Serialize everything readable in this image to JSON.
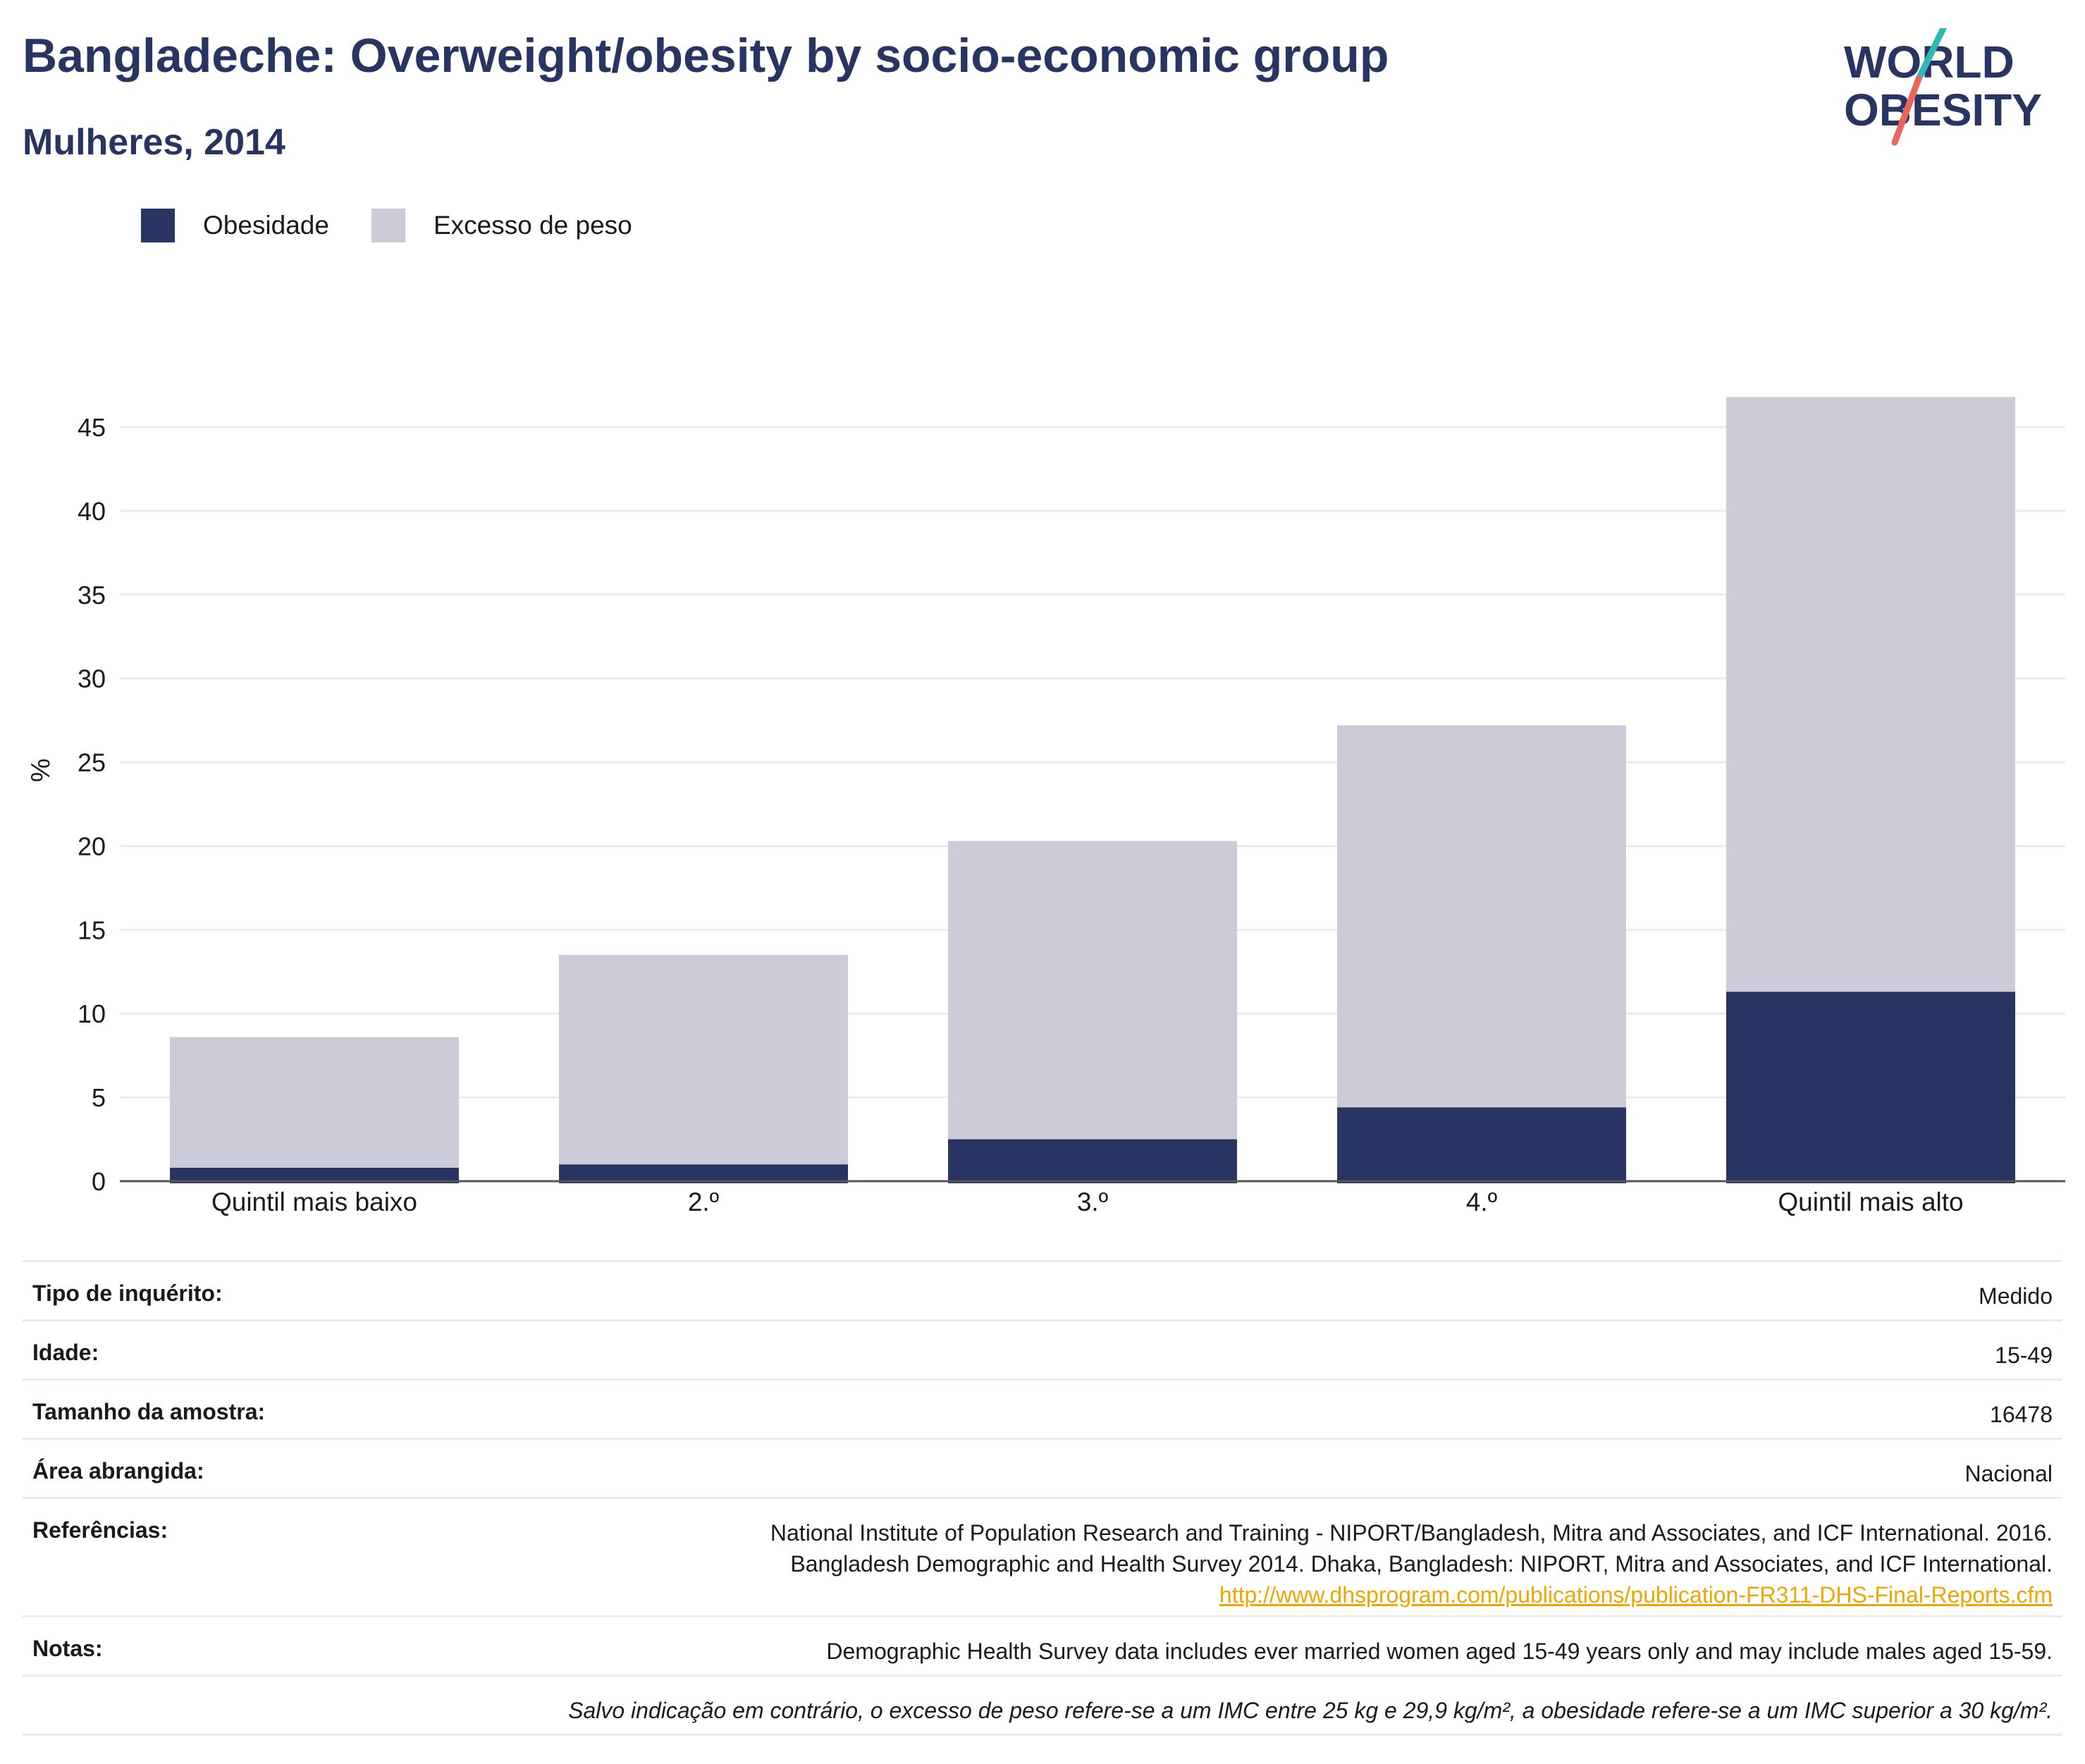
{
  "header": {
    "title": "Bangladeche: Overweight/obesity by socio-economic group",
    "subtitle": "Mulheres, 2014"
  },
  "logo": {
    "line1": "WORLD",
    "line2": "OBESITY"
  },
  "legend": [
    {
      "label": "Obesidade",
      "color": "#283562"
    },
    {
      "label": "Excesso de peso",
      "color": "#cbccd7"
    }
  ],
  "chart_data": {
    "type": "bar",
    "stacked": false,
    "overlay": true,
    "categories": [
      "Quintil mais baixo",
      "2.º",
      "3.º",
      "4.º",
      "Quintil mais alto"
    ],
    "series": [
      {
        "name": "Excesso de peso",
        "color": "#cbccd7",
        "values": [
          8.6,
          13.5,
          20.3,
          27.2,
          46.8
        ]
      },
      {
        "name": "Obesidade",
        "color": "#283562",
        "values": [
          0.8,
          1.0,
          2.5,
          4.4,
          11.3
        ]
      }
    ],
    "ylabel": "%",
    "yticks": [
      0,
      5,
      10,
      15,
      20,
      25,
      30,
      35,
      40,
      45
    ],
    "ylim": [
      0,
      48
    ],
    "grid": true,
    "legend_position": "top-left"
  },
  "info": {
    "survey_type_label": "Tipo de inquérito:",
    "survey_type_value": "Medido",
    "age_label": "Idade:",
    "age_value": "15-49",
    "sample_label": "Tamanho da amostra:",
    "sample_value": "16478",
    "area_label": "Área abrangida:",
    "area_value": "Nacional",
    "refs_label": "Referências:",
    "refs_line1": "National Institute of Population Research and Training - NIPORT/Bangladesh, Mitra and Associates, and ICF International. 2016.",
    "refs_line2": "Bangladesh Demographic and Health Survey 2014. Dhaka, Bangladesh: NIPORT, Mitra and Associates, and ICF International.",
    "refs_link": "http://www.dhsprogram.com/publications/publication-FR311-DHS-Final-Reports.cfm",
    "notes_label": "Notas:",
    "notes_value": "Demographic Health Survey data includes ever married women aged 15-49 years only and may include males aged 15-59.",
    "footnote": "Salvo indicação em contrário, o excesso de peso refere-se a um IMC entre 25 kg e 29,9 kg/m², a obesidade refere-se a um IMC superior a 30 kg/m²."
  }
}
